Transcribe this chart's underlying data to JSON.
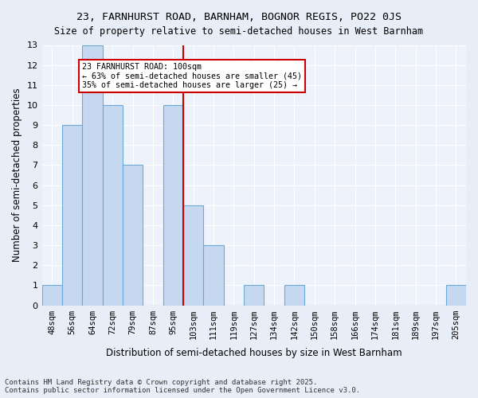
{
  "title1": "23, FARNHURST ROAD, BARNHAM, BOGNOR REGIS, PO22 0JS",
  "title2": "Size of property relative to semi-detached houses in West Barnham",
  "xlabel": "Distribution of semi-detached houses by size in West Barnham",
  "ylabel": "Number of semi-detached properties",
  "footer": "Contains HM Land Registry data © Crown copyright and database right 2025.\nContains public sector information licensed under the Open Government Licence v3.0.",
  "bins": [
    "48sqm",
    "56sqm",
    "64sqm",
    "72sqm",
    "79sqm",
    "87sqm",
    "95sqm",
    "103sqm",
    "111sqm",
    "119sqm",
    "127sqm",
    "134sqm",
    "142sqm",
    "150sqm",
    "158sqm",
    "166sqm",
    "174sqm",
    "181sqm",
    "189sqm",
    "197sqm",
    "205sqm"
  ],
  "values": [
    1,
    9,
    13,
    10,
    7,
    0,
    10,
    5,
    3,
    0,
    1,
    0,
    1,
    0,
    0,
    0,
    0,
    0,
    0,
    0,
    1
  ],
  "bar_color": "#c5d8f0",
  "bar_edge_color": "#6aaad4",
  "vline_x": 7,
  "vline_color": "#cc0000",
  "annotation_title": "23 FARNHURST ROAD: 100sqm",
  "annotation_line1": "← 63% of semi-detached houses are smaller (45)",
  "annotation_line2": "35% of semi-detached houses are larger (25) →",
  "annotation_box_color": "#ffffff",
  "annotation_box_edge": "#cc0000",
  "ylim": [
    0,
    13
  ],
  "yticks": [
    0,
    1,
    2,
    3,
    4,
    5,
    6,
    7,
    8,
    9,
    10,
    11,
    12,
    13
  ],
  "bg_color": "#e8eef8",
  "plot_bg_color": "#eef2fb"
}
